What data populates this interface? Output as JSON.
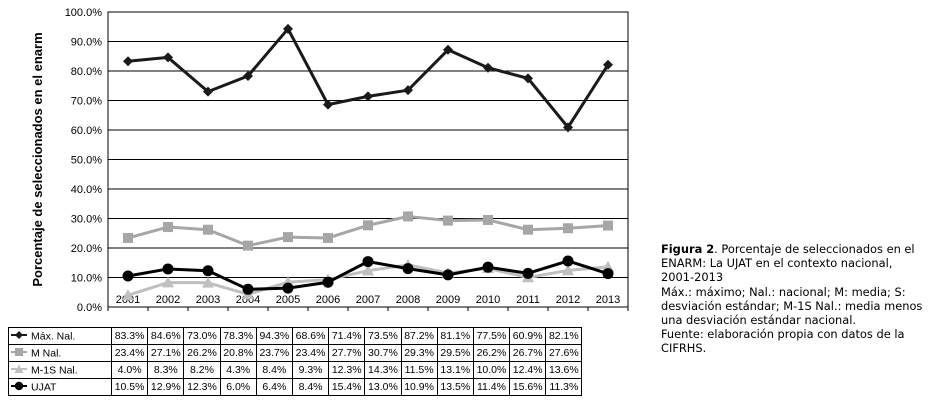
{
  "chart_data": {
    "type": "line",
    "ylabel": "Porcentaje de seleccionados en el enarm",
    "ylim": [
      0,
      100
    ],
    "yticks": [
      "0.0%",
      "10.0%",
      "20.0%",
      "30.0%",
      "40.0%",
      "50.0%",
      "60.0%",
      "70.0%",
      "80.0%",
      "90.0%",
      "100.0%"
    ],
    "categories": [
      "2001",
      "2002",
      "2003",
      "2004",
      "2005",
      "2006",
      "2007",
      "2008",
      "2009",
      "2010",
      "2011",
      "2012",
      "2013"
    ],
    "grid": "horizontal",
    "legend": "data-table-below",
    "series": [
      {
        "name": "Máx. Nal.",
        "color": "#1a1a1a",
        "marker": "diamond",
        "values": [
          83.3,
          84.6,
          73.0,
          78.3,
          94.3,
          68.6,
          71.4,
          73.5,
          87.2,
          81.1,
          77.5,
          60.9,
          82.1
        ],
        "labels": [
          "83.3%",
          "84.6%",
          "73.0%",
          "78.3%",
          "94.3%",
          "68.6%",
          "71.4%",
          "73.5%",
          "87.2%",
          "81.1%",
          "77.5%",
          "60.9%",
          "82.1%"
        ]
      },
      {
        "name": "M Nal.",
        "color": "#a6a6a6",
        "marker": "square",
        "values": [
          23.4,
          27.1,
          26.2,
          20.8,
          23.7,
          23.4,
          27.7,
          30.7,
          29.3,
          29.5,
          26.2,
          26.7,
          27.6
        ],
        "labels": [
          "23.4%",
          "27.1%",
          "26.2%",
          "20.8%",
          "23.7%",
          "23.4%",
          "27.7%",
          "30.7%",
          "29.3%",
          "29.5%",
          "26.2%",
          "26.7%",
          "27.6%"
        ]
      },
      {
        "name": "M-1S Nal.",
        "color": "#bfbfbf",
        "marker": "triangle",
        "values": [
          4.0,
          8.3,
          8.2,
          4.3,
          8.4,
          9.3,
          12.3,
          14.3,
          11.5,
          13.1,
          10.0,
          12.4,
          13.6
        ],
        "labels": [
          "4.0%",
          "8.3%",
          "8.2%",
          "4.3%",
          "8.4%",
          "9.3%",
          "12.3%",
          "14.3%",
          "11.5%",
          "13.1%",
          "10.0%",
          "12.4%",
          "13.6%"
        ]
      },
      {
        "name": "UJAT",
        "color": "#000000",
        "marker": "circle",
        "values": [
          10.5,
          12.9,
          12.3,
          6.0,
          6.4,
          8.4,
          15.4,
          13.0,
          10.9,
          13.5,
          11.4,
          15.6,
          11.3
        ],
        "labels": [
          "10.5%",
          "12.9%",
          "12.3%",
          "6.0%",
          "6.4%",
          "8.4%",
          "15.4%",
          "13.0%",
          "10.9%",
          "13.5%",
          "11.4%",
          "15.6%",
          "11.3%"
        ]
      }
    ]
  },
  "caption": {
    "figure_label": "Figura 2",
    "title": ". Porcentaje de seleccionados en el ENARM: La UJAT en el contexto nacional, 2001-2013",
    "abbreviations": "Máx.: máximo; Nal.: nacional; M: media; S: desviación estándar; M-1S Nal.: media menos una desviación estándar nacional.",
    "source": "Fuente: elaboración propia con datos de la CIFRHS."
  }
}
